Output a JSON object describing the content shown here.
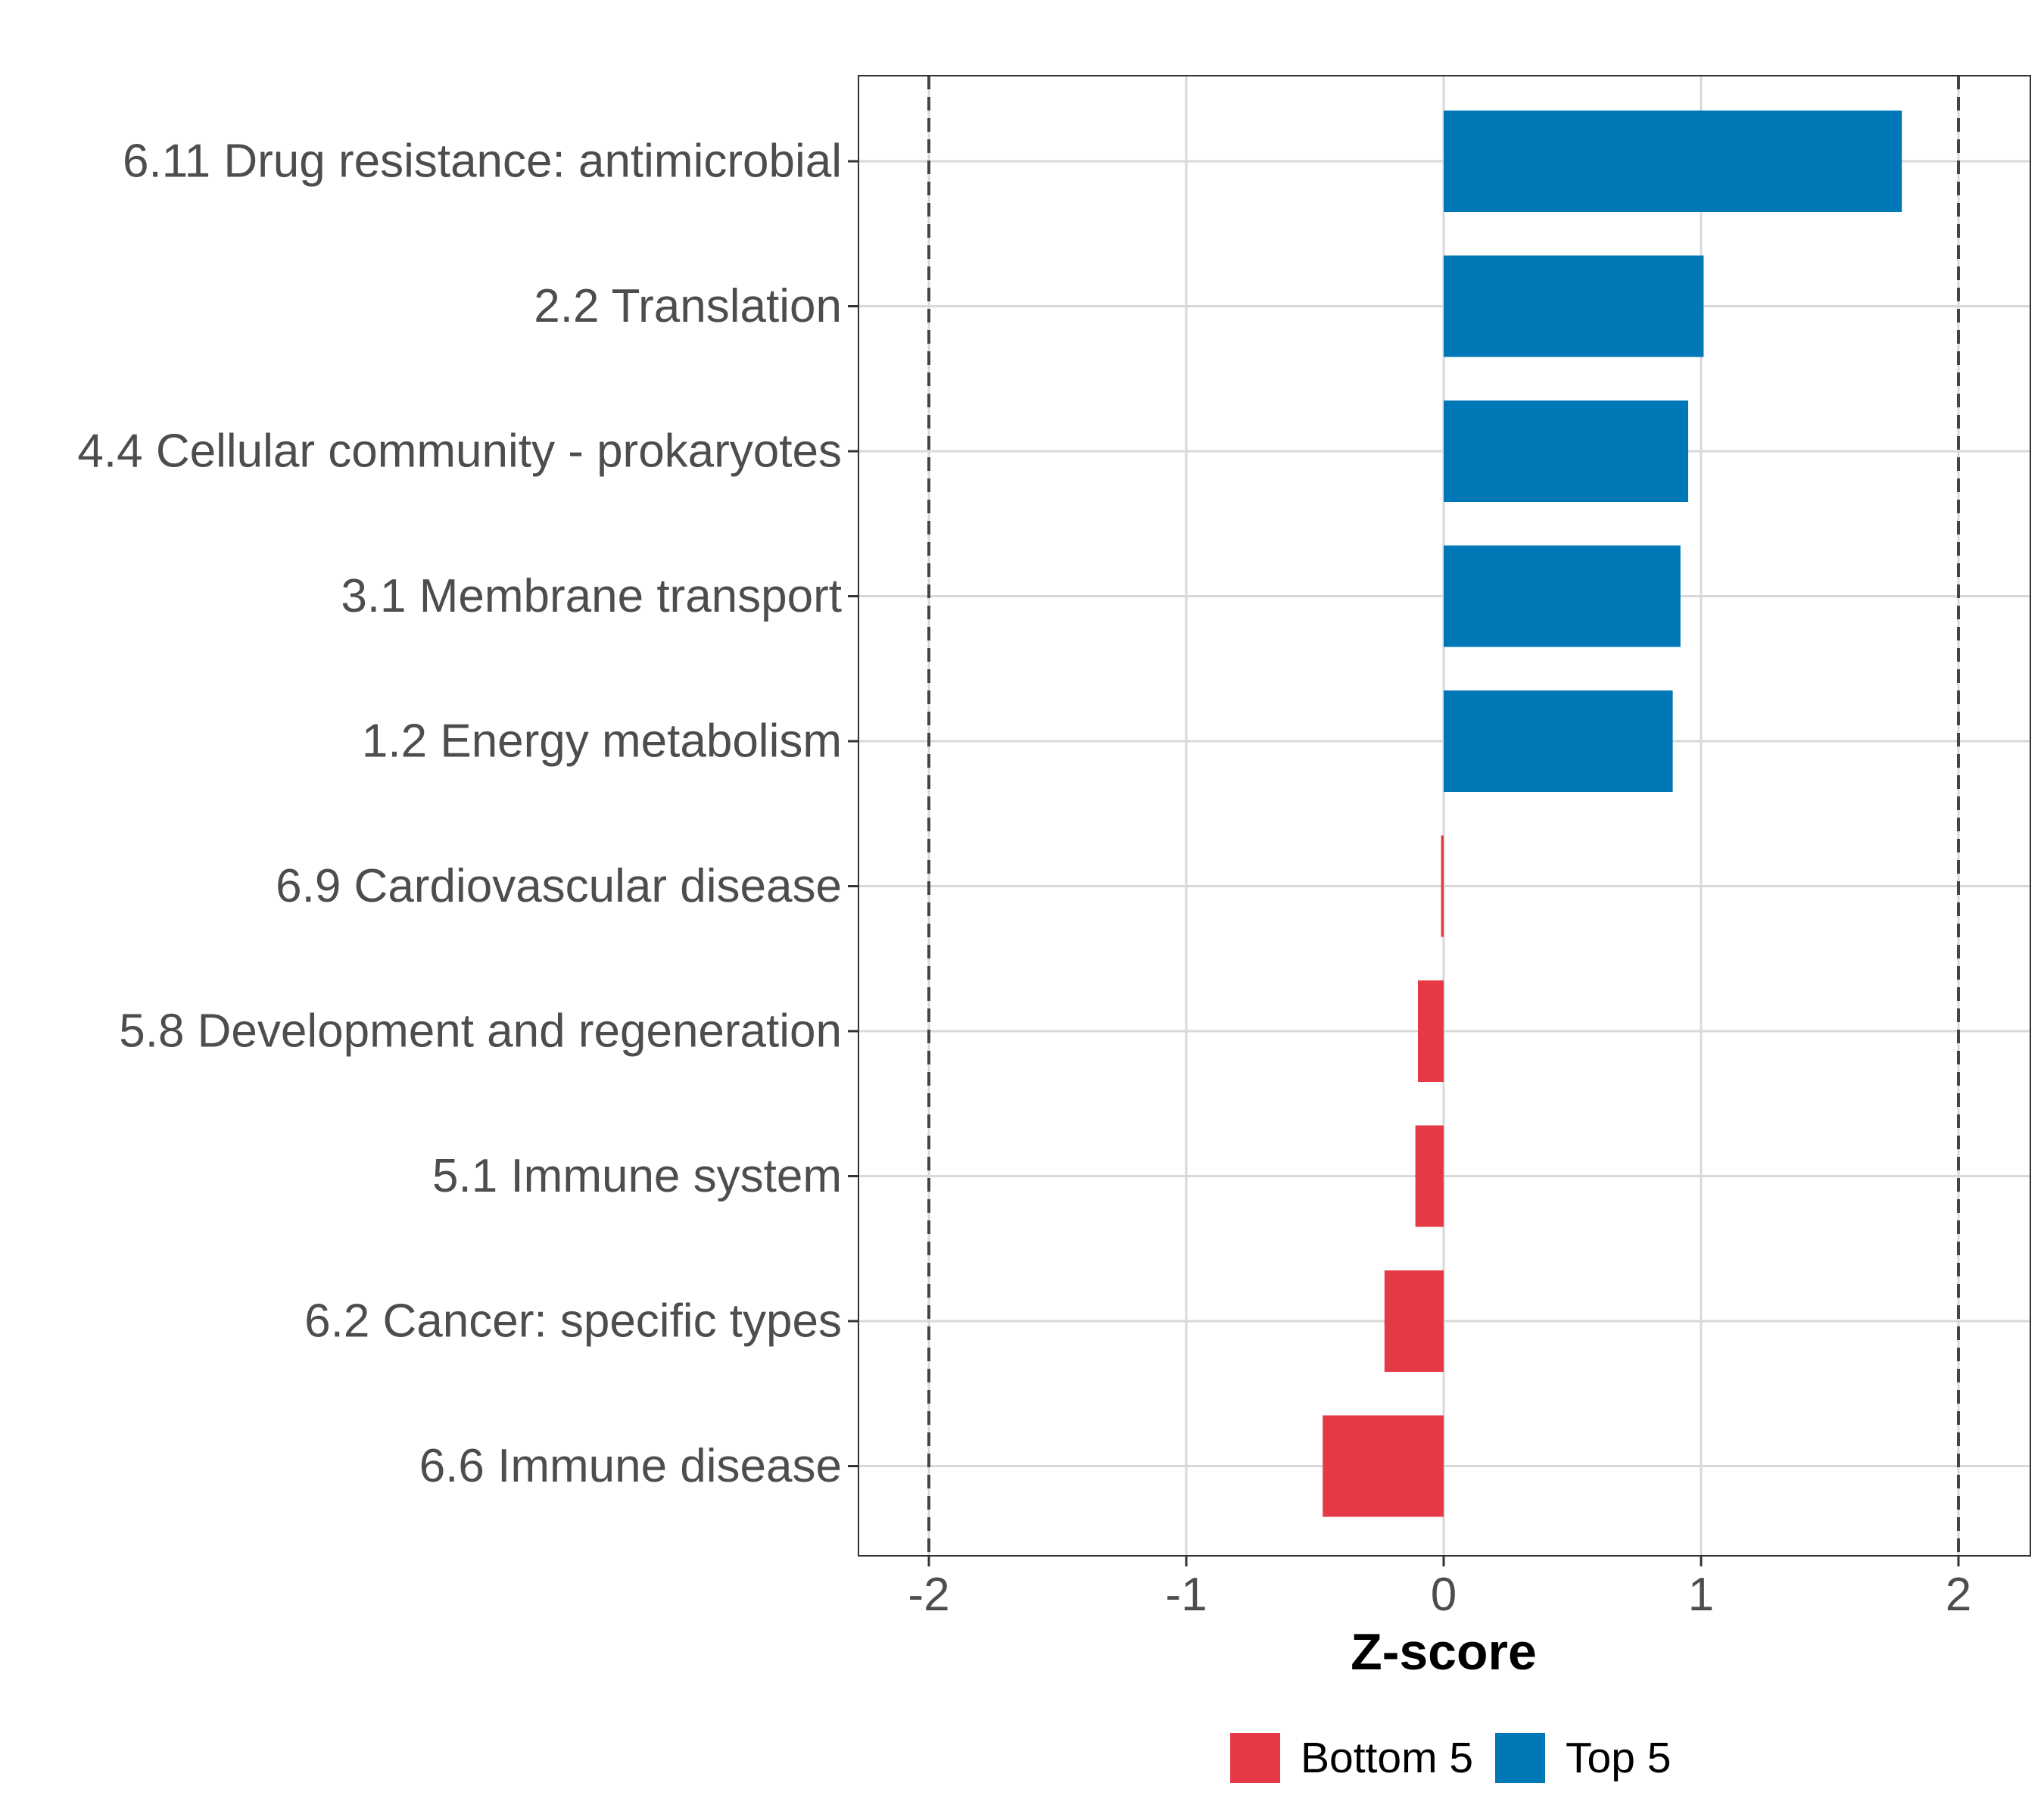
{
  "chart_data": {
    "type": "bar",
    "orientation": "horizontal",
    "title": "",
    "xlabel": "Z-score",
    "ylabel": "",
    "xlim": [
      -2.25,
      2.28
    ],
    "xticks": [
      -2,
      -1,
      0,
      1,
      2
    ],
    "xtick_labels": [
      "-2",
      "-1",
      "0",
      "1",
      "2"
    ],
    "reference_lines": [
      -2,
      2
    ],
    "grid": true,
    "legend_position": "bottom",
    "categories": [
      "6.11 Drug resistance: antimicrobial",
      "2.2 Translation",
      "4.4 Cellular community - prokaryotes",
      "3.1 Membrane transport",
      "1.2 Energy metabolism",
      "6.9 Cardiovascular disease",
      "5.8 Development and regeneration",
      "5.1 Immune system",
      "6.2 Cancer: specific types",
      "6.6 Immune disease"
    ],
    "values": [
      1.78,
      1.01,
      0.95,
      0.92,
      0.89,
      -0.01,
      -0.1,
      -0.11,
      -0.23,
      -0.47
    ],
    "groups": [
      "Top 5",
      "Top 5",
      "Top 5",
      "Top 5",
      "Top 5",
      "Bottom 5",
      "Bottom 5",
      "Bottom 5",
      "Bottom 5",
      "Bottom 5"
    ],
    "legend": [
      {
        "name": "Bottom 5",
        "color": "#E63946"
      },
      {
        "name": "Top 5",
        "color": "#0077B6"
      }
    ]
  }
}
